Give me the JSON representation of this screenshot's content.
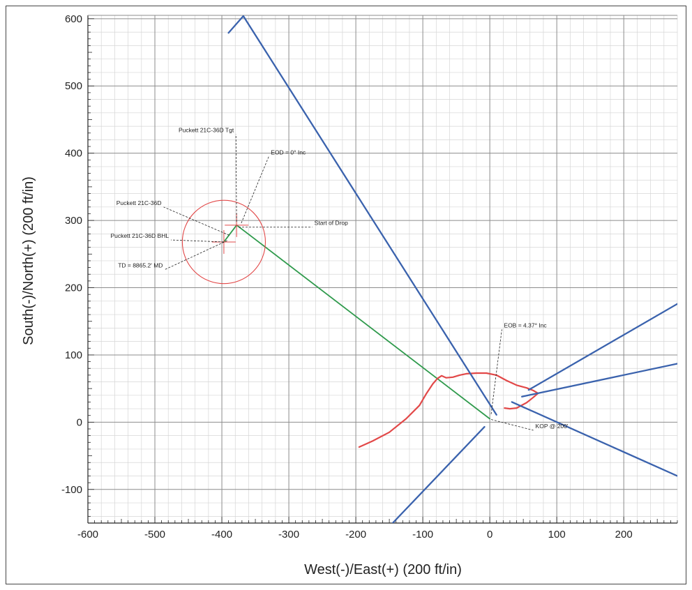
{
  "chart_data": {
    "type": "line",
    "xlabel": "West(-)/East(+) (200 ft/in)",
    "ylabel": "South(-)/North(+) (200 ft/in)",
    "xlim": [
      -600,
      280
    ],
    "ylim": [
      -150,
      605
    ],
    "x_ticks": [
      -600,
      -500,
      -400,
      -300,
      -200,
      -100,
      0,
      100,
      200
    ],
    "y_ticks": [
      -100,
      0,
      100,
      200,
      300,
      400,
      500,
      600
    ],
    "grid": true,
    "colors": {
      "offset_wells": "#3a62ad",
      "planned_well": "#2f9a4c",
      "lease_line": "#e24848",
      "target": "#e24848",
      "annotation": "#222222"
    },
    "series": [
      {
        "style": "planned-well",
        "x": [
          0,
          -378,
          -397
        ],
        "y": [
          5,
          293,
          268
        ]
      },
      {
        "style": "lease-line",
        "x": [
          -195,
          -175,
          -150,
          -125,
          -105,
          -95,
          -85,
          -78,
          -72,
          -65,
          -55,
          -45,
          -35,
          -20,
          -5,
          10,
          25,
          40,
          55,
          65,
          72,
          65,
          55,
          40,
          30,
          22
        ],
        "y": [
          -37,
          -28,
          -15,
          5,
          25,
          42,
          57,
          65,
          69,
          66,
          67,
          70,
          72,
          73,
          73,
          70,
          62,
          55,
          51,
          47,
          43,
          37,
          29,
          21,
          20,
          21
        ]
      },
      {
        "style": "offset-well",
        "x": [
          -390,
          -368,
          10
        ],
        "y": [
          579,
          604,
          11
        ]
      },
      {
        "style": "offset-well",
        "x": [
          -145,
          -8
        ],
        "y": [
          -150,
          -7
        ]
      },
      {
        "style": "offset-well",
        "x": [
          58,
          280
        ],
        "y": [
          48,
          176
        ]
      },
      {
        "style": "offset-well",
        "x": [
          48,
          280
        ],
        "y": [
          38,
          87
        ]
      },
      {
        "style": "offset-well",
        "x": [
          33,
          280
        ],
        "y": [
          30,
          -80
        ]
      }
    ],
    "target_circle": {
      "x": -397,
      "y": 268,
      "radius_ft": 62
    },
    "target_crosses": [
      {
        "x": -397,
        "y": 268
      },
      {
        "x": -378,
        "y": 293
      }
    ],
    "annotations": [
      {
        "text": "Puckett 21C-36D Tgt",
        "anchor_x": -378,
        "anchor_y": 298,
        "label_x": -379,
        "label_y": 428
      },
      {
        "text": "EOD = 0° Inc",
        "anchor_x": -371,
        "anchor_y": 296,
        "label_x": -330,
        "label_y": 395
      },
      {
        "text": "Puckett 21C-36D",
        "anchor_x": -389,
        "anchor_y": 278,
        "label_x": -487,
        "label_y": 320
      },
      {
        "text": "Start of Drop",
        "anchor_x": -375,
        "anchor_y": 290,
        "label_x": -265,
        "label_y": 290
      },
      {
        "text": "Puckett 21C-36D BHL",
        "anchor_x": -397,
        "anchor_y": 268,
        "label_x": -476,
        "label_y": 271
      },
      {
        "text": "TD = 8865.2' MD",
        "anchor_x": -392,
        "anchor_y": 270,
        "label_x": -485,
        "label_y": 227
      },
      {
        "text": "EOB = 4.37° Inc",
        "anchor_x": 2,
        "anchor_y": 12,
        "label_x": 18,
        "label_y": 138
      },
      {
        "text": "KOP @ 200'",
        "anchor_x": 2,
        "anchor_y": 4,
        "label_x": 65,
        "label_y": -12
      }
    ]
  }
}
